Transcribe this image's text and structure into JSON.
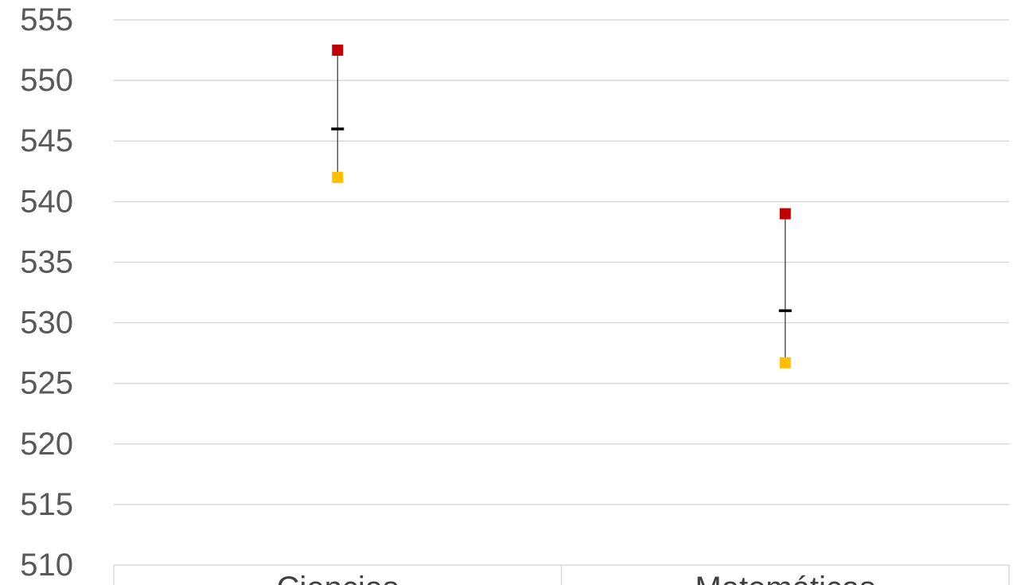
{
  "chart_data": {
    "type": "scatter",
    "title": "",
    "xlabel": "",
    "ylabel": "",
    "categories": [
      "Ciencias",
      "Matemáticas"
    ],
    "ylim": [
      510,
      555
    ],
    "yticks": [
      555,
      550,
      545,
      540,
      535,
      530,
      525,
      520,
      515,
      510
    ],
    "grid": true,
    "series": [
      {
        "values": [
          552.5,
          539.0
        ],
        "color": "#c00000",
        "marker": "square"
      },
      {
        "values": [
          546.0,
          531.0
        ],
        "color": "#000000",
        "marker": "dash"
      },
      {
        "values": [
          542.0,
          526.7
        ],
        "color": "#ffc000",
        "marker": "square"
      }
    ],
    "range_lines": true
  }
}
